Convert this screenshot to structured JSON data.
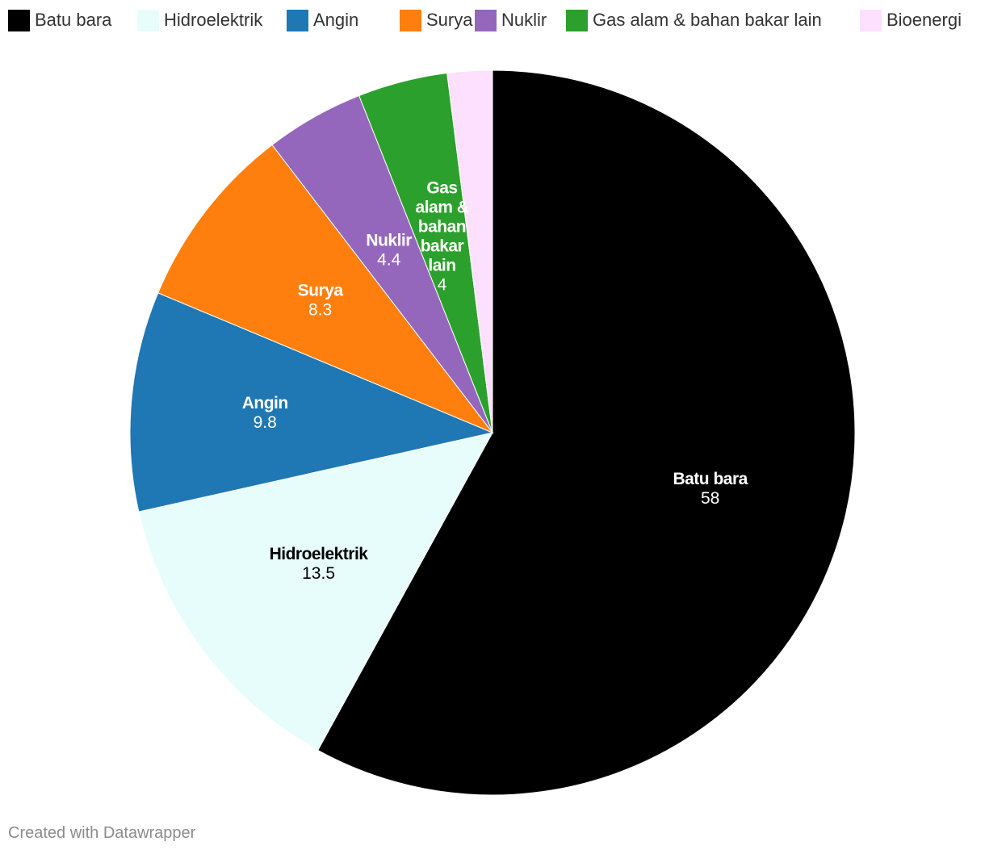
{
  "chart_data": {
    "type": "pie",
    "categories": [
      "Batu bara",
      "Hidroelektrik",
      "Angin",
      "Surya",
      "Nuklir",
      "Gas alam & bahan bakar lain",
      "Bioenergi"
    ],
    "values": [
      58,
      13.5,
      9.8,
      8.3,
      4.4,
      4,
      2
    ],
    "value_labels": [
      "58",
      "13.5",
      "9.8",
      "8.3",
      "4.4",
      "4",
      ""
    ],
    "slice_label_lines": [
      [
        "Batu bara"
      ],
      [
        "Hidroelektrik"
      ],
      [
        "Angin"
      ],
      [
        "Surya"
      ],
      [
        "Nuklir"
      ],
      [
        "Gas",
        "alam &",
        "bahan",
        "bakar",
        "lain"
      ],
      []
    ],
    "colors": [
      "#000000",
      "#e7fdfc",
      "#1f77b4",
      "#ff7f0e",
      "#9467bd",
      "#2ca02c",
      "#fde0fd"
    ],
    "label_colors": [
      "#ffffff",
      "#000000",
      "#ffffff",
      "#ffffff",
      "#ffffff",
      "#ffffff",
      "#000000"
    ],
    "legend": {
      "placement": "top-left",
      "items": [
        "Batu bara",
        "Hidroelektrik",
        "Angin",
        "Surya",
        "Nuklir",
        "Gas alam & bahan bakar lain",
        "Bioenergi"
      ]
    }
  },
  "footer": {
    "credit": "Created with Datawrapper"
  }
}
